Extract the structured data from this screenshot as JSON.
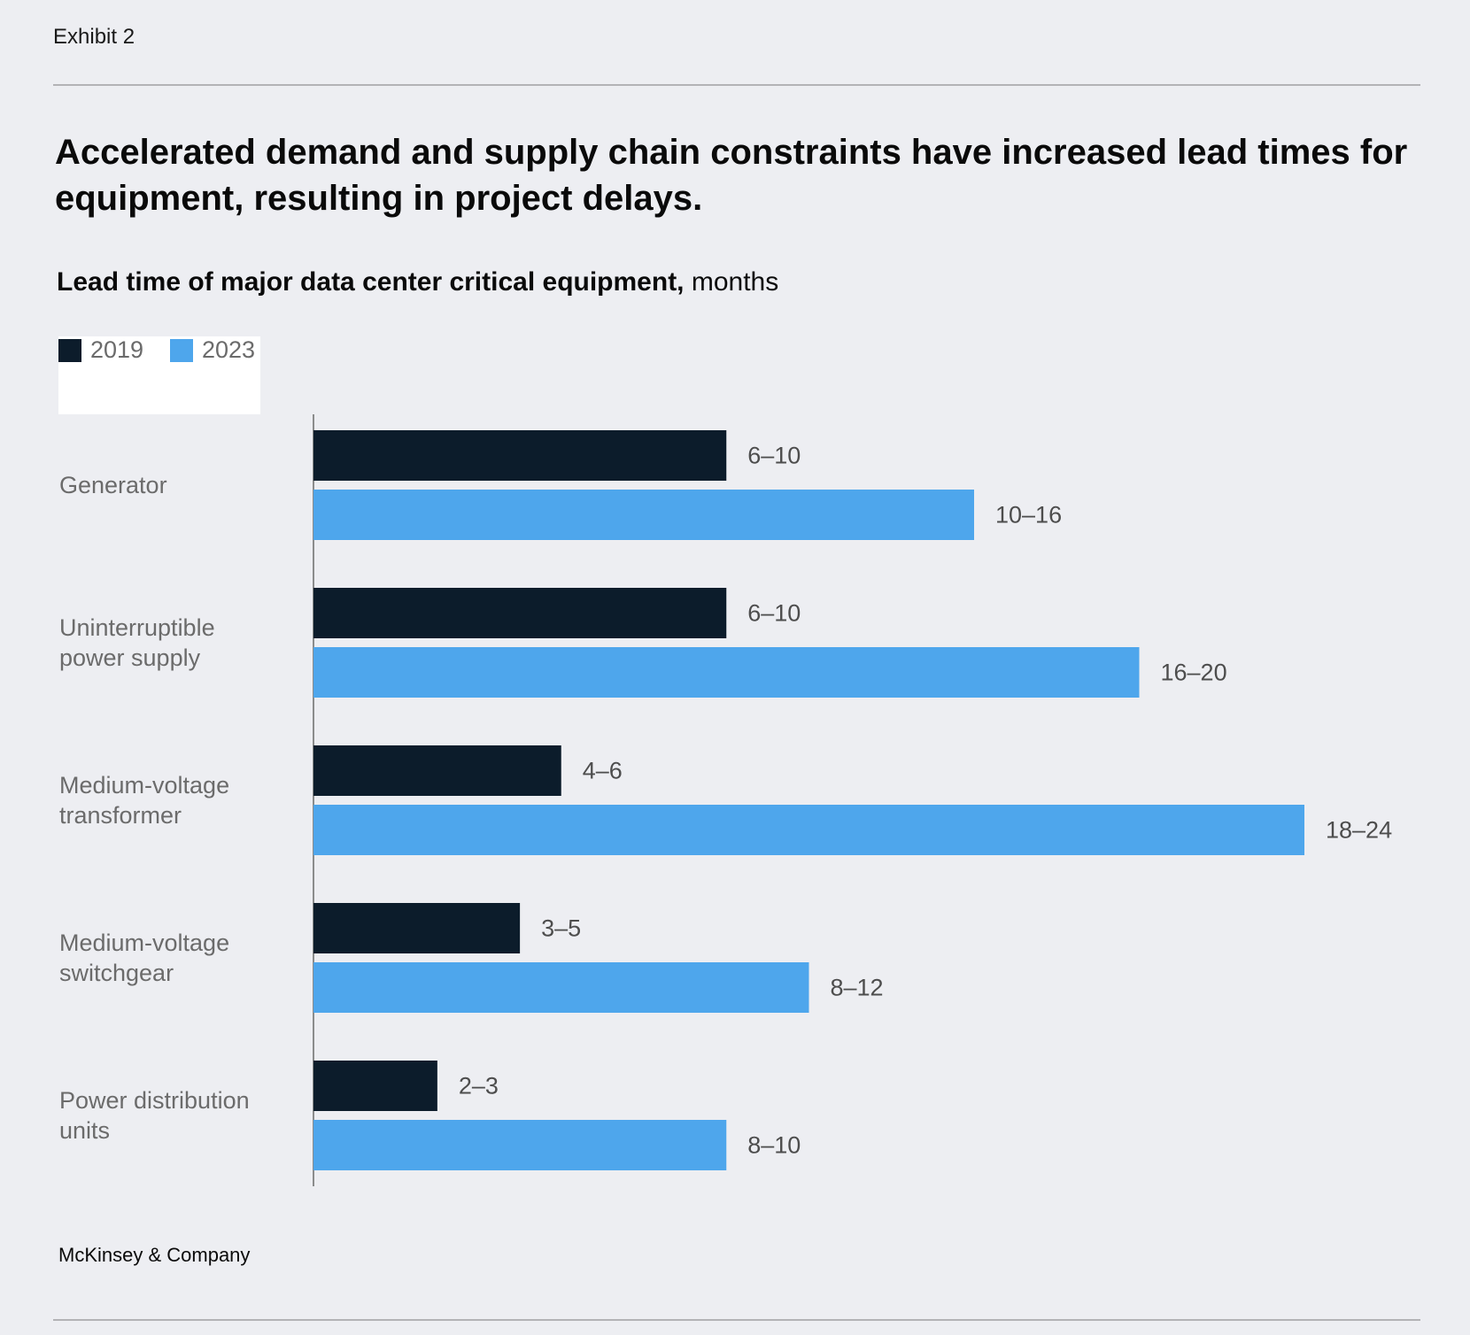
{
  "exhibit_label": "Exhibit 2",
  "headline": "Accelerated demand and supply chain constraints have increased lead times for equipment, resulting in project delays.",
  "subtitle": {
    "bold": "Lead time of major data center critical equipment,",
    "regular": " months"
  },
  "source": "McKinsey & Company",
  "colors": {
    "series_2019": "#0c1c2b",
    "series_2023": "#4ea6ec",
    "axis": "#6b6b6b"
  },
  "chart_data": {
    "type": "bar",
    "orientation": "horizontal",
    "title": "Lead time of major data center critical equipment, months",
    "categories": [
      [
        "Generator"
      ],
      [
        "Uninterruptible",
        "power supply"
      ],
      [
        "Medium-voltage",
        "transformer"
      ],
      [
        "Medium-voltage",
        "switchgear"
      ],
      [
        "Power distribution",
        "units"
      ]
    ],
    "series": [
      {
        "name": "2019",
        "values": [
          10,
          10,
          6,
          5,
          3
        ],
        "labels": [
          "6–10",
          "6–10",
          "4–6",
          "3–5",
          "2–3"
        ]
      },
      {
        "name": "2023",
        "values": [
          16,
          20,
          24,
          12,
          10
        ],
        "labels": [
          "10–16",
          "16–20",
          "18–24",
          "8–12",
          "8–10"
        ]
      }
    ],
    "legend_position": "top-left",
    "grid": false
  }
}
